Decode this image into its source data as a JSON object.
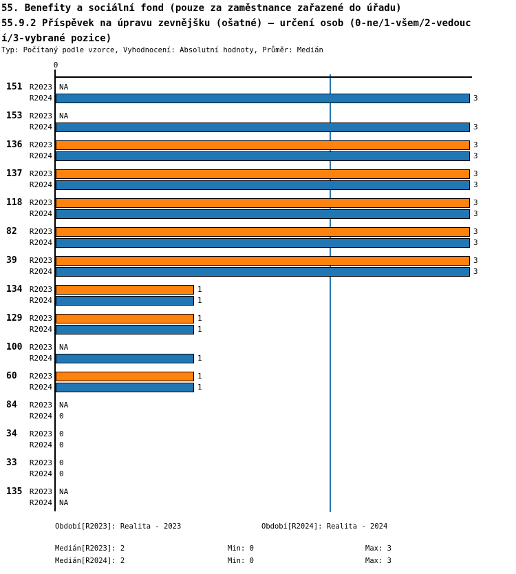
{
  "title": {
    "line1": "55. Benefity a sociální fond (pouze za zaměstnance zařazené do úřadu)",
    "line2": "55.9.2 Příspěvek na úpravu zevnějšku (ošatné) – určení osob (0-ne/1-všem/2-vedouc",
    "line3": "í/3-vybrané pozice)",
    "subtitle": "Typ: Počítaný podle vzorce, Vyhodnocení: Absolutní hodnoty, Průměr: Medián"
  },
  "chart_data": {
    "type": "bar",
    "orientation": "horizontal",
    "title": "55.9.2 Příspěvek na úpravu zevnějšku (ošatné) – určení osob (0-ne/1-všem/2-vedoucí/3-vybrané pozice)",
    "axis": {
      "tick_label": "0",
      "xlim": [
        0,
        3
      ],
      "median_gridline_value": 2,
      "grid": "single vertical line at median"
    },
    "series_labels": [
      "R2023",
      "R2024"
    ],
    "colors": {
      "R2023": "#fd820e",
      "R2024": "#2176b4",
      "median_line": "#2878b0",
      "bar_border": "#000000"
    },
    "na_text": "NA",
    "groups": [
      {
        "id": "151",
        "R2023": "NA",
        "R2024": 3
      },
      {
        "id": "153",
        "R2023": "NA",
        "R2024": 3
      },
      {
        "id": "136",
        "R2023": 3,
        "R2024": 3
      },
      {
        "id": "137",
        "R2023": 3,
        "R2024": 3
      },
      {
        "id": "118",
        "R2023": 3,
        "R2024": 3
      },
      {
        "id": "82",
        "R2023": 3,
        "R2024": 3
      },
      {
        "id": "39",
        "R2023": 3,
        "R2024": 3
      },
      {
        "id": "134",
        "R2023": 1,
        "R2024": 1
      },
      {
        "id": "129",
        "R2023": 1,
        "R2024": 1
      },
      {
        "id": "100",
        "R2023": "NA",
        "R2024": 1
      },
      {
        "id": "60",
        "R2023": 1,
        "R2024": 1
      },
      {
        "id": "84",
        "R2023": "NA",
        "R2024": 0
      },
      {
        "id": "34",
        "R2023": 0,
        "R2024": 0
      },
      {
        "id": "33",
        "R2023": 0,
        "R2024": 0
      },
      {
        "id": "135",
        "R2023": "NA",
        "R2024": "NA"
      }
    ]
  },
  "footer": {
    "period_2023": "Období[R2023]: Realita - 2023",
    "period_2024": "Období[R2024]: Realita - 2024",
    "median_2023": "Medián[R2023]: 2",
    "median_2024": "Medián[R2024]: 2",
    "min_2023": "Min: 0",
    "max_2023": "Max: 3",
    "min_2024": "Min: 0",
    "max_2024": "Max: 3"
  }
}
